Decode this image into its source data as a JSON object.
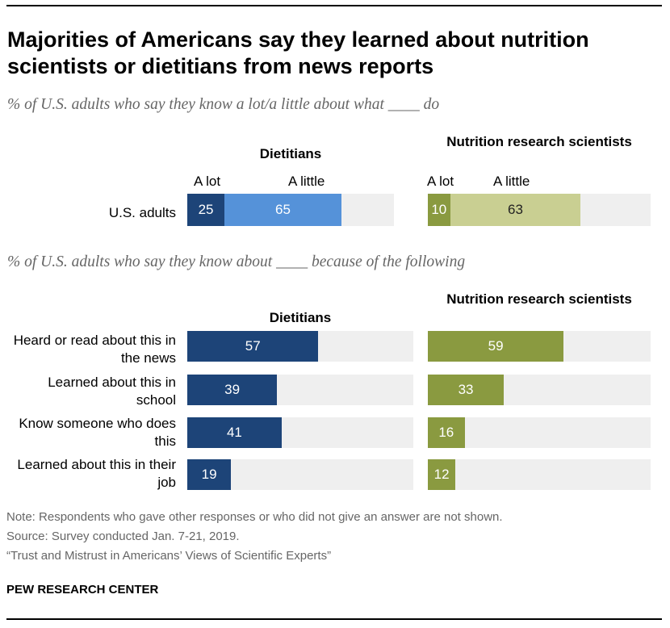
{
  "title": "Majorities of Americans say they learned about nutrition scientists or dietitians from news reports",
  "subtitle1": "% of U.S. adults who say they know a lot/a little about what ____ do",
  "subtitle2": "% of U.S. adults who say they know about ____ because of the following",
  "top": {
    "panels": [
      {
        "title": "Dietitians",
        "sub_a": "A lot",
        "sub_b": "A little"
      },
      {
        "title": "Nutrition research scientists",
        "sub_a": "A lot",
        "sub_b": "A little"
      }
    ],
    "row_label": "U.S. adults"
  },
  "bottom": {
    "panels": [
      {
        "title": "Dietitians"
      },
      {
        "title": "Nutrition research scientists"
      }
    ],
    "rows": [
      "Heard or read about this in the news",
      "Learned about this in school",
      "Know someone who does this",
      "Learned about this in their job"
    ]
  },
  "notes": {
    "note": "Note: Respondents who gave other responses or who did not give an answer are not shown.",
    "source": "Source: Survey conducted Jan. 7-21, 2019.",
    "report": "“Trust and Mistrust in Americans’ Views of Scientific Experts”"
  },
  "brand": "PEW RESEARCH CENTER",
  "colors": {
    "dietitians_dark": "#1d4478",
    "dietitians_light": "#5592d9",
    "scientists_dark": "#8a9a40",
    "scientists_light": "#c9cf92",
    "track": "#efefef"
  },
  "chart_data": [
    {
      "type": "bar",
      "title": "Know a lot/a little about what they do",
      "categories": [
        "U.S. adults"
      ],
      "series": [
        {
          "name": "Dietitians - A lot",
          "values": [
            25
          ]
        },
        {
          "name": "Dietitians - A little",
          "values": [
            65
          ]
        },
        {
          "name": "Nutrition research scientists - A lot",
          "values": [
            10
          ]
        },
        {
          "name": "Nutrition research scientists - A little",
          "values": [
            63
          ]
        }
      ],
      "ylim": [
        0,
        100
      ]
    },
    {
      "type": "bar",
      "title": "Know about them because of the following",
      "categories": [
        "Heard or read about this in the news",
        "Learned about this in school",
        "Know someone who does this",
        "Learned about this in their job"
      ],
      "series": [
        {
          "name": "Dietitians",
          "values": [
            57,
            39,
            41,
            19
          ]
        },
        {
          "name": "Nutrition research scientists",
          "values": [
            59,
            33,
            16,
            12
          ]
        }
      ],
      "ylim": [
        0,
        100
      ]
    }
  ]
}
